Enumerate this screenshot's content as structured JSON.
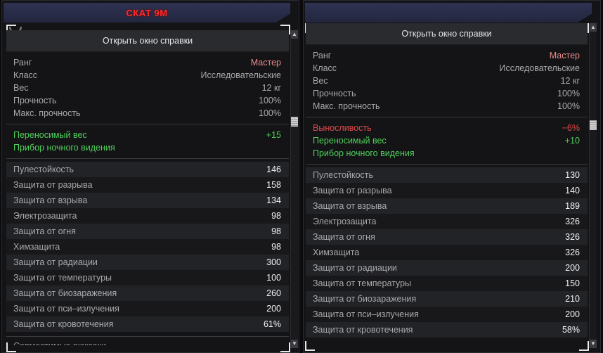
{
  "left": {
    "title": "СКАТ 9М",
    "help_label": "Открыть окно справки",
    "info": [
      {
        "label": "Ранг",
        "value": "Мастер"
      },
      {
        "label": "Класс",
        "value": "Исследовательские"
      },
      {
        "label": "Вес",
        "value": "12 кг"
      },
      {
        "label": "Прочность",
        "value": "100%"
      },
      {
        "label": "Макс. прочность",
        "value": "100%"
      }
    ],
    "bonuses": [
      {
        "label": "Переносимый вес",
        "value": "+15",
        "tone": "pos"
      },
      {
        "label": "Прибор ночного видения",
        "value": "",
        "tone": "pos"
      }
    ],
    "stats": [
      {
        "label": "Пулестойкость",
        "value": "146"
      },
      {
        "label": "Защита от разрыва",
        "value": "158"
      },
      {
        "label": "Защита от взрыва",
        "value": "134"
      },
      {
        "label": "Электрозащита",
        "value": "98"
      },
      {
        "label": "Защита от огня",
        "value": "98"
      },
      {
        "label": "Химзащита",
        "value": "98"
      },
      {
        "label": "Защита от радиации",
        "value": "300"
      },
      {
        "label": "Защита от температуры",
        "value": "100"
      },
      {
        "label": "Защита от биозаражения",
        "value": "260"
      },
      {
        "label": "Защита от пси–излучения",
        "value": "200"
      },
      {
        "label": "Защита от кровотечения",
        "value": "61%"
      }
    ],
    "cut_text": "Совместимые рюкзаки"
  },
  "right": {
    "title": "",
    "help_label": "Открыть окно справки",
    "info": [
      {
        "label": "Ранг",
        "value": "Мастер"
      },
      {
        "label": "Класс",
        "value": "Исследовательские"
      },
      {
        "label": "Вес",
        "value": "12 кг"
      },
      {
        "label": "Прочность",
        "value": "100%"
      },
      {
        "label": "Макс. прочность",
        "value": "100%"
      }
    ],
    "bonuses": [
      {
        "label": "Выносливость",
        "value": "−6%",
        "tone": "neg"
      },
      {
        "label": "Переносимый вес",
        "value": "+10",
        "tone": "pos"
      },
      {
        "label": "Прибор ночного видения",
        "value": "",
        "tone": "pos"
      }
    ],
    "stats": [
      {
        "label": "Пулестойкость",
        "value": "130"
      },
      {
        "label": "Защита от разрыва",
        "value": "140"
      },
      {
        "label": "Защита от взрыва",
        "value": "189"
      },
      {
        "label": "Электрозащита",
        "value": "326"
      },
      {
        "label": "Защита от огня",
        "value": "326"
      },
      {
        "label": "Химзащита",
        "value": "326"
      },
      {
        "label": "Защита от радиации",
        "value": "200"
      },
      {
        "label": "Защита от температуры",
        "value": "150"
      },
      {
        "label": "Защита от биозаражения",
        "value": "210"
      },
      {
        "label": "Защита от пси–излучения",
        "value": "200"
      },
      {
        "label": "Защита от кровотечения",
        "value": "58%"
      }
    ]
  },
  "scroll": {
    "up_icon": "▲",
    "down_icon": "▼"
  }
}
